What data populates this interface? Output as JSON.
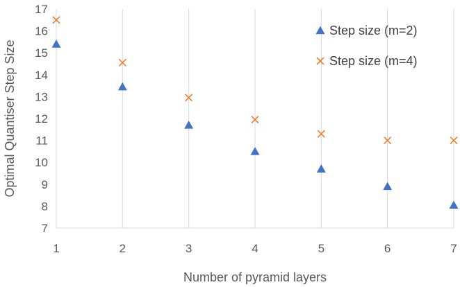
{
  "chart_data": {
    "type": "scatter",
    "title": "",
    "xlabel": "Number of pyramid layers",
    "ylabel": "Optimal Quantiser Step Size",
    "xlim": [
      1,
      7
    ],
    "ylim": [
      7,
      17
    ],
    "x_ticks": [
      1,
      2,
      3,
      4,
      5,
      6,
      7
    ],
    "y_ticks": [
      7,
      8,
      9,
      10,
      11,
      12,
      13,
      14,
      15,
      16,
      17
    ],
    "grid": "vertical",
    "legend_position": "top-right",
    "series": [
      {
        "name": "Step size (m=2)",
        "marker": "triangle",
        "color": "#4472c4",
        "x": [
          1,
          2,
          3,
          4,
          5,
          6,
          7
        ],
        "y": [
          15.4,
          13.45,
          11.7,
          10.5,
          9.7,
          8.9,
          8.05
        ]
      },
      {
        "name": "Step size (m=4)",
        "marker": "x",
        "color": "#ed7d31",
        "x": [
          1,
          2,
          3,
          4,
          5,
          6,
          7
        ],
        "y": [
          16.5,
          14.55,
          12.95,
          11.95,
          11.3,
          11.0,
          11.0
        ]
      }
    ]
  }
}
